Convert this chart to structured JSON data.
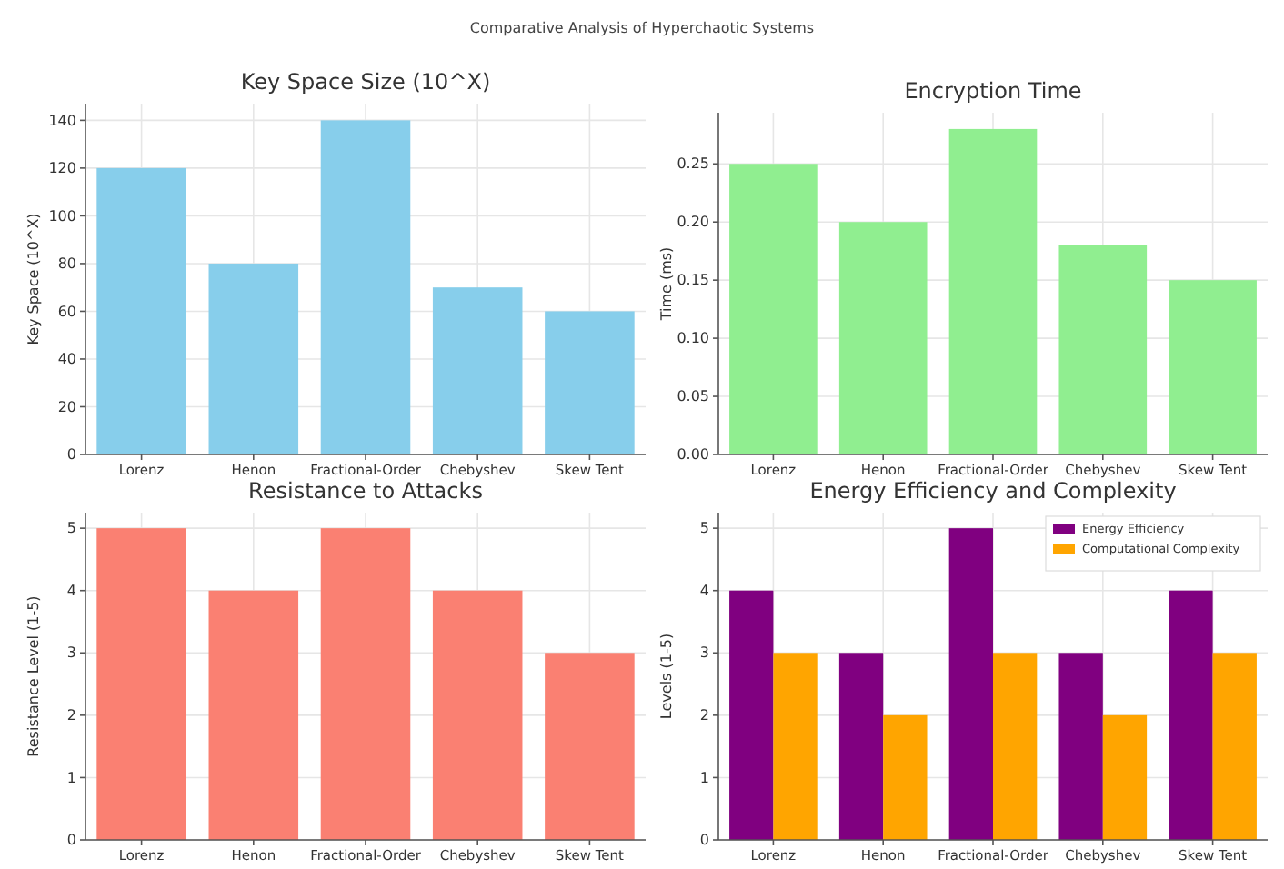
{
  "chart_data": [
    {
      "type": "other",
      "title": "Comparative Analysis of Hyperchaotic Systems"
    },
    {
      "type": "bar",
      "title": "Key Space Size (10^X)",
      "ylabel": "Key Space (10^X)",
      "categories": [
        "Lorenz",
        "Henon",
        "Fractional-Order",
        "Chebyshev",
        "Skew Tent"
      ],
      "values": [
        120,
        80,
        140,
        70,
        60
      ],
      "color": "#87ceeb",
      "ylim": [
        0,
        147
      ],
      "yticks": [
        0,
        20,
        40,
        60,
        80,
        100,
        120,
        140
      ],
      "grid": true
    },
    {
      "type": "bar",
      "title": "Encryption Time",
      "ylabel": "Time (ms)",
      "categories": [
        "Lorenz",
        "Henon",
        "Fractional-Order",
        "Chebyshev",
        "Skew Tent"
      ],
      "values": [
        0.25,
        0.2,
        0.28,
        0.18,
        0.15
      ],
      "color": "#90ee90",
      "ylim": [
        0,
        0.294
      ],
      "yticks": [
        {
          "value": 0,
          "label": "0.00"
        },
        {
          "value": 0.05,
          "label": "0.05"
        },
        {
          "value": 0.1,
          "label": "0.10"
        },
        {
          "value": 0.15,
          "label": "0.15"
        },
        {
          "value": 0.2,
          "label": "0.20"
        },
        {
          "value": 0.25,
          "label": "0.25"
        }
      ],
      "grid": true
    },
    {
      "type": "bar",
      "title": "Resistance to Attacks",
      "ylabel": "Resistance Level (1-5)",
      "categories": [
        "Lorenz",
        "Henon",
        "Fractional-Order",
        "Chebyshev",
        "Skew Tent"
      ],
      "values": [
        5,
        4,
        5,
        4,
        3
      ],
      "color": "#fa8072",
      "ylim": [
        0,
        5.25
      ],
      "yticks": [
        0,
        1,
        2,
        3,
        4,
        5
      ],
      "grid": true
    },
    {
      "type": "bar",
      "title": "Energy Efficiency and Complexity",
      "ylabel": "Levels (1-5)",
      "categories": [
        "Lorenz",
        "Henon",
        "Fractional-Order",
        "Chebyshev",
        "Skew Tent"
      ],
      "series": [
        {
          "name": "Energy Efficiency",
          "color": "#800080",
          "values": [
            4,
            3,
            5,
            3,
            4
          ]
        },
        {
          "name": "Computational Complexity",
          "color": "#ffa500",
          "values": [
            3,
            2,
            3,
            2,
            3
          ]
        }
      ],
      "ylim": [
        0,
        5.25
      ],
      "yticks": [
        0,
        1,
        2,
        3,
        4,
        5
      ],
      "grid": true,
      "legend": "top right"
    }
  ]
}
